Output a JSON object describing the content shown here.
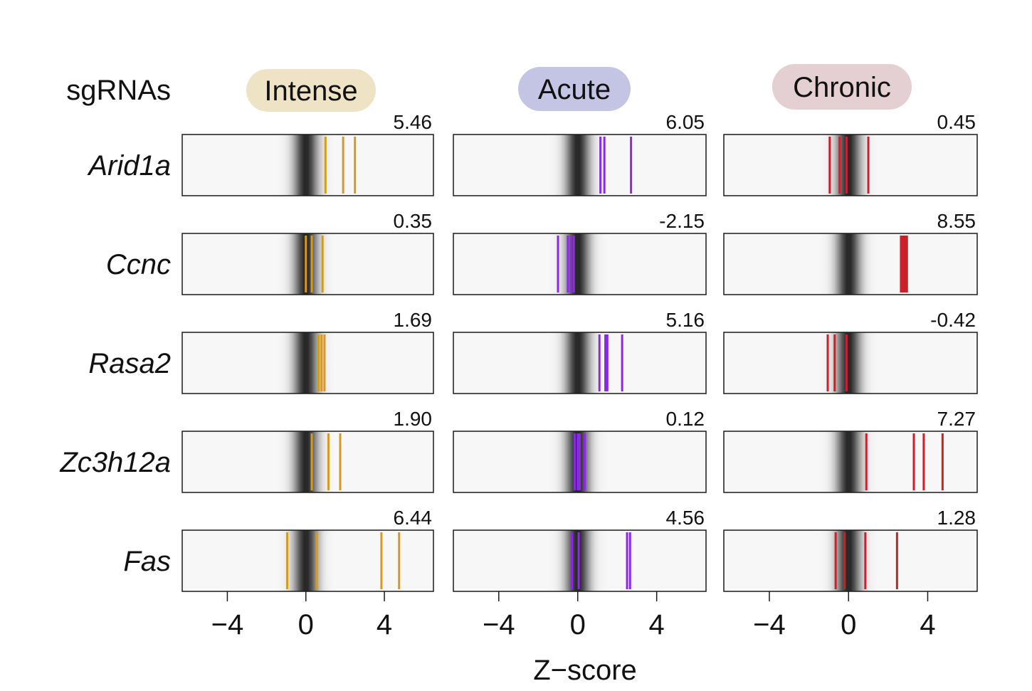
{
  "figure": {
    "row_header": "sgRNAs",
    "x_axis_label": "Z−score"
  },
  "chart_data": {
    "type": "strip",
    "xlim": [
      -6.3,
      6.5
    ],
    "x_ticks": [
      -4,
      0,
      4
    ],
    "x_tick_labels": [
      "−4",
      "0",
      "4"
    ],
    "xlabel": "Z−score",
    "background": "dark gaussian density band centred at 0 on light grey",
    "genes": [
      "Arid1a",
      "Ccnc",
      "Rasa2",
      "Zc3h12a",
      "Fas"
    ],
    "conditions": [
      {
        "name": "Intense",
        "label_bg": "#efe3c5",
        "line_color": "#d49a22",
        "rows": [
          {
            "gene": "Arid1a",
            "score": "5.46",
            "sgrna_z": [
              1.0,
              1.9,
              2.5
            ]
          },
          {
            "gene": "Ccnc",
            "score": "0.35",
            "sgrna_z": [
              0.0,
              0.3,
              0.85
            ]
          },
          {
            "gene": "Rasa2",
            "score": "1.69",
            "sgrna_z": [
              0.65,
              0.8,
              0.95
            ]
          },
          {
            "gene": "Zc3h12a",
            "score": "1.90",
            "sgrna_z": [
              0.3,
              1.15,
              1.75
            ]
          },
          {
            "gene": "Fas",
            "score": "6.44",
            "sgrna_z": [
              -0.95,
              0.55,
              3.85,
              4.75
            ]
          }
        ]
      },
      {
        "name": "Acute",
        "label_bg": "#c4c4e4",
        "line_color": "#8a2be2",
        "rows": [
          {
            "gene": "Arid1a",
            "score": "6.05",
            "sgrna_z": [
              1.15,
              1.35,
              2.7
            ]
          },
          {
            "gene": "Ccnc",
            "score": "-2.15",
            "sgrna_z": [
              -1.0,
              -0.5,
              -0.35,
              -0.2
            ]
          },
          {
            "gene": "Rasa2",
            "score": "5.16",
            "sgrna_z": [
              1.1,
              1.4,
              1.5,
              2.25
            ]
          },
          {
            "gene": "Zc3h12a",
            "score": "0.12",
            "sgrna_z": [
              -0.15,
              0.0,
              0.1,
              0.35
            ]
          },
          {
            "gene": "Fas",
            "score": "4.56",
            "sgrna_z": [
              -0.3,
              0.05,
              2.5,
              2.65
            ]
          }
        ]
      },
      {
        "name": "Chronic",
        "label_bg": "#e4cfd2",
        "line_color": "#cc1f2a",
        "rows": [
          {
            "gene": "Arid1a",
            "score": "0.45",
            "sgrna_z": [
              -0.95,
              -0.45,
              -0.1,
              1.0
            ]
          },
          {
            "gene": "Ccnc",
            "score": "8.55",
            "sgrna_z": [
              2.65,
              2.75,
              2.85,
              2.95
            ]
          },
          {
            "gene": "Rasa2",
            "score": "-0.42",
            "sgrna_z": [
              -1.05,
              -0.7,
              -0.1
            ]
          },
          {
            "gene": "Zc3h12a",
            "score": "7.27",
            "sgrna_z": [
              0.9,
              3.3,
              3.8,
              4.75
            ]
          },
          {
            "gene": "Fas",
            "score": "1.28",
            "sgrna_z": [
              -0.65,
              -0.2,
              0.85,
              2.45
            ]
          }
        ]
      }
    ]
  }
}
